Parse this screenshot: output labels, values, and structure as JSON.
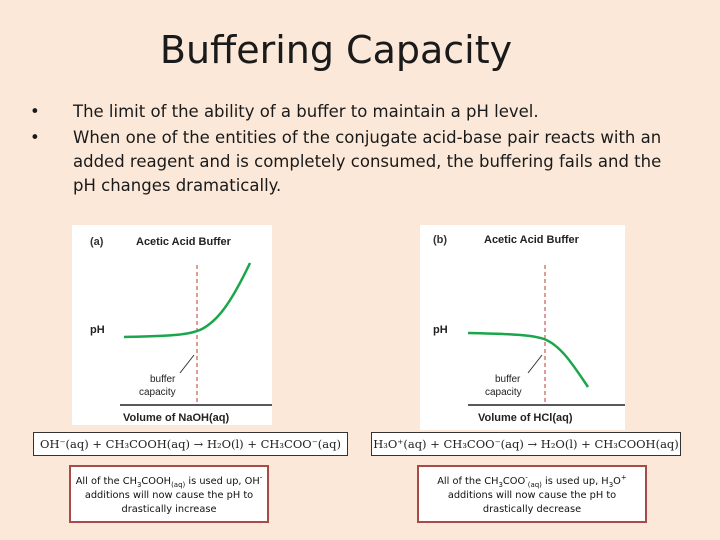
{
  "title": "Buffering Capacity",
  "bullets": [
    "The limit of the ability of a buffer to maintain a pH level.",
    "When one of the entities of the conjugate acid-base pair reacts with an added reagent and is completely consumed, the buffering fails and the pH changes dramatically."
  ],
  "bullet_glyph": "•",
  "panel_a": {
    "tag": "(a)",
    "heading": "Acetic Acid Buffer",
    "ylabel": "pH",
    "xlabel": "Volume of NaOH(aq)",
    "marker_label_1": "buffer",
    "marker_label_2": "capacity",
    "equation": "OH⁻(aq) + CH₃COOH(aq) → H₂O(l) + CH₃COO⁻(aq)"
  },
  "panel_b": {
    "tag": "(b)",
    "heading": "Acetic Acid Buffer",
    "ylabel": "pH",
    "xlabel": "Volume of HCl(aq)",
    "marker_label_1": "buffer",
    "marker_label_2": "capacity",
    "equation": "H₃O⁺(aq) + CH₃COO⁻(aq) → H₂O(l) + CH₃COOH(aq)"
  },
  "note_a": {
    "pre": "All of the CH",
    "sub1": "3",
    "mid": "COOH",
    "sub2": "(aq)",
    "post": " is used up, OH",
    "sup": "-",
    "line2": "additions will now cause the pH to",
    "line3": "drastically increase"
  },
  "note_b": {
    "pre": "All of the CH",
    "sub1": "3",
    "mid": "COO",
    "sup1": "-",
    "sub2": "(aq)",
    "post": " is used up, H",
    "sub3": "3",
    "post2": "O",
    "sup2": "+",
    "line2": "additions will now cause the pH to",
    "line3": "drastically decrease"
  },
  "colors": {
    "curve": "#1aa64a",
    "marker": "#c0392b",
    "note_border": "#a84a4a",
    "background": "#fbe8d8"
  }
}
